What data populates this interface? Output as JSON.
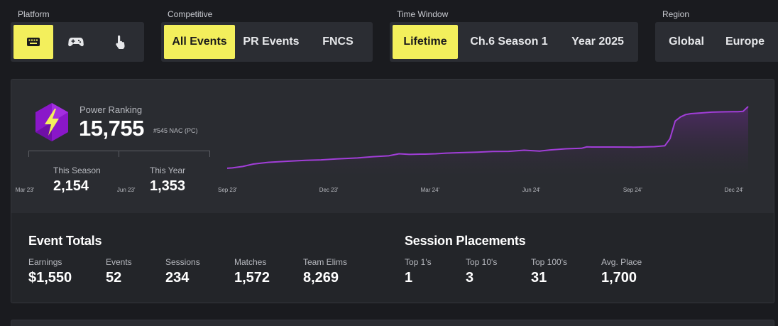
{
  "filters": {
    "platform": {
      "label": "Platform",
      "options": [
        {
          "icon": "keyboard-icon",
          "active": true
        },
        {
          "icon": "gamepad-icon",
          "active": false
        },
        {
          "icon": "touch-icon",
          "active": false
        }
      ]
    },
    "competitive": {
      "label": "Competitive",
      "options": [
        {
          "label": "All Events",
          "active": true
        },
        {
          "label": "PR Events",
          "active": false
        },
        {
          "label": "FNCS",
          "active": false
        }
      ]
    },
    "time_window": {
      "label": "Time Window",
      "options": [
        {
          "label": "Lifetime",
          "active": true
        },
        {
          "label": "Ch.6 Season 1",
          "active": false
        },
        {
          "label": "Year 2025",
          "active": false
        }
      ]
    },
    "region": {
      "label": "Region",
      "options": [
        {
          "label": "Global",
          "active": false
        },
        {
          "label": "Europe",
          "active": false
        }
      ]
    }
  },
  "power_ranking": {
    "label": "Power Ranking",
    "value": "15,755",
    "rank": "#545 NAC (PC)",
    "icon": "lightning-hexagon-icon",
    "this_season": {
      "label": "This Season",
      "value": "2,154"
    },
    "this_year": {
      "label": "This Year",
      "value": "1,353"
    }
  },
  "chart_data": {
    "type": "area",
    "x_ticks": [
      "Mar 23'",
      "Jun 23'",
      "Sep 23'",
      "Dec 23'",
      "Mar 24'",
      "Jun 24'",
      "Sep 24'",
      "Dec 24'"
    ],
    "x": [
      0.0,
      0.01,
      0.03,
      0.05,
      0.06,
      0.08,
      0.12,
      0.15,
      0.18,
      0.21,
      0.25,
      0.28,
      0.31,
      0.33,
      0.35,
      0.37,
      0.38,
      0.4,
      0.42,
      0.45,
      0.48,
      0.51,
      0.54,
      0.57,
      0.6,
      0.62,
      0.65,
      0.68,
      0.69,
      0.7,
      0.74,
      0.78,
      0.82,
      0.84,
      0.85,
      0.86,
      0.87,
      0.88,
      0.89,
      0.9,
      0.91,
      0.93,
      0.95,
      0.97,
      0.98,
      0.99,
      1.0
    ],
    "values": [
      360,
      380,
      470,
      620,
      660,
      730,
      800,
      850,
      880,
      940,
      1000,
      1080,
      1130,
      1260,
      1220,
      1240,
      1240,
      1260,
      1300,
      1330,
      1360,
      1400,
      1410,
      1480,
      1430,
      1500,
      1570,
      1600,
      1690,
      1680,
      1680,
      1670,
      1700,
      1760,
      2200,
      3300,
      3550,
      3700,
      3760,
      3780,
      3800,
      3850,
      3870,
      3880,
      3880,
      3900,
      4200
    ],
    "colors": {
      "line": "#a13ed8",
      "fill_top": "#5a2a74",
      "fill_bottom": "#2c2a33"
    }
  },
  "event_totals": {
    "title": "Event Totals",
    "stats": [
      {
        "label": "Earnings",
        "value": "$1,550"
      },
      {
        "label": "Events",
        "value": "52"
      },
      {
        "label": "Sessions",
        "value": "234"
      },
      {
        "label": "Matches",
        "value": "1,572"
      },
      {
        "label": "Team Elims",
        "value": "8,269"
      }
    ]
  },
  "session_placements": {
    "title": "Session Placements",
    "stats": [
      {
        "label": "Top 1's",
        "value": "1"
      },
      {
        "label": "Top 10's",
        "value": "3"
      },
      {
        "label": "Top 100's",
        "value": "31"
      },
      {
        "label": "Avg. Place",
        "value": "1,700"
      }
    ]
  },
  "colors": {
    "accent": "#f3ef5c",
    "background": "#1a1b1f",
    "panel": "#2a2c31",
    "icon_purple": "#8a17c9"
  }
}
